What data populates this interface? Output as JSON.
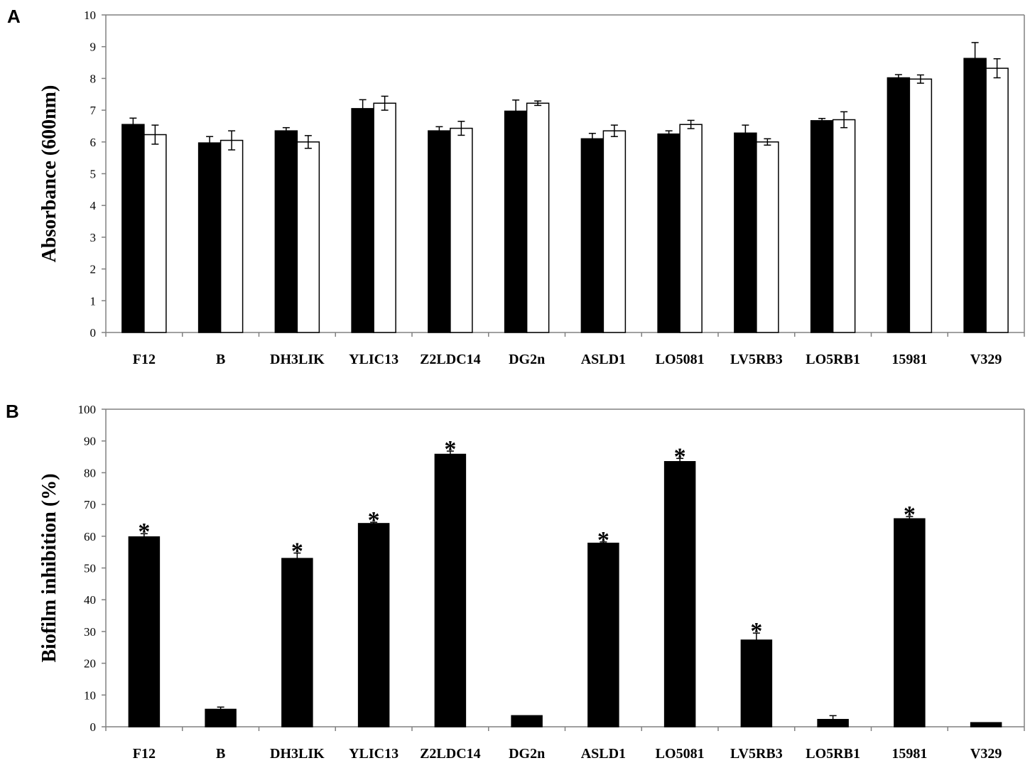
{
  "chart_data": [
    {
      "panel": "A",
      "type": "bar",
      "title": "",
      "xlabel": "",
      "ylabel": "Absorbance (600nm)",
      "ylim": [
        0,
        10
      ],
      "yticks": [
        0,
        1,
        2,
        3,
        4,
        5,
        6,
        7,
        8,
        9,
        10
      ],
      "grid": false,
      "legend": "none",
      "categories": [
        "F12",
        "B",
        "DH3LIK",
        "YLIC13",
        "Z2LDC14",
        "DG2n",
        "ASLD1",
        "LO5081",
        "LV5RB3",
        "LO5RB1",
        "15981",
        "V329"
      ],
      "series": [
        {
          "color": "#000000",
          "values": [
            6.55,
            5.97,
            6.35,
            7.05,
            6.35,
            6.97,
            6.1,
            6.25,
            6.28,
            6.67,
            8.02,
            8.63
          ],
          "errors": [
            0.2,
            0.2,
            0.1,
            0.28,
            0.13,
            0.35,
            0.17,
            0.1,
            0.25,
            0.07,
            0.1,
            0.5
          ]
        },
        {
          "color": "#ffffff",
          "values": [
            6.23,
            6.05,
            6.0,
            7.22,
            6.43,
            7.22,
            6.35,
            6.55,
            6.0,
            6.7,
            7.98,
            8.32
          ],
          "errors": [
            0.3,
            0.3,
            0.2,
            0.22,
            0.22,
            0.07,
            0.18,
            0.13,
            0.1,
            0.25,
            0.13,
            0.3
          ]
        }
      ]
    },
    {
      "panel": "B",
      "type": "bar",
      "title": "",
      "xlabel": "",
      "ylabel": "Biofilm inhibition (%)",
      "ylim": [
        0,
        100
      ],
      "yticks": [
        0,
        10,
        20,
        30,
        40,
        50,
        60,
        70,
        80,
        90,
        100
      ],
      "grid": false,
      "legend": "none",
      "categories": [
        "F12",
        "B",
        "DH3LIK",
        "YLIC13",
        "Z2LDC14",
        "DG2n",
        "ASLD1",
        "LO5081",
        "LV5RB3",
        "LO5RB1",
        "15981",
        "V329"
      ],
      "series": [
        {
          "color": "#000000",
          "values": [
            59.8,
            5.5,
            53.0,
            64.0,
            85.8,
            3.5,
            57.8,
            83.5,
            27.3,
            2.3,
            65.5,
            1.3
          ],
          "errors": [
            1.0,
            0.7,
            1.7,
            0.4,
            1.0,
            0.0,
            0.4,
            1.0,
            2.2,
            1.2,
            0.7,
            0.0
          ],
          "significant": [
            true,
            false,
            true,
            true,
            true,
            false,
            true,
            true,
            true,
            false,
            true,
            false
          ]
        }
      ],
      "significance_marker": "*"
    }
  ]
}
